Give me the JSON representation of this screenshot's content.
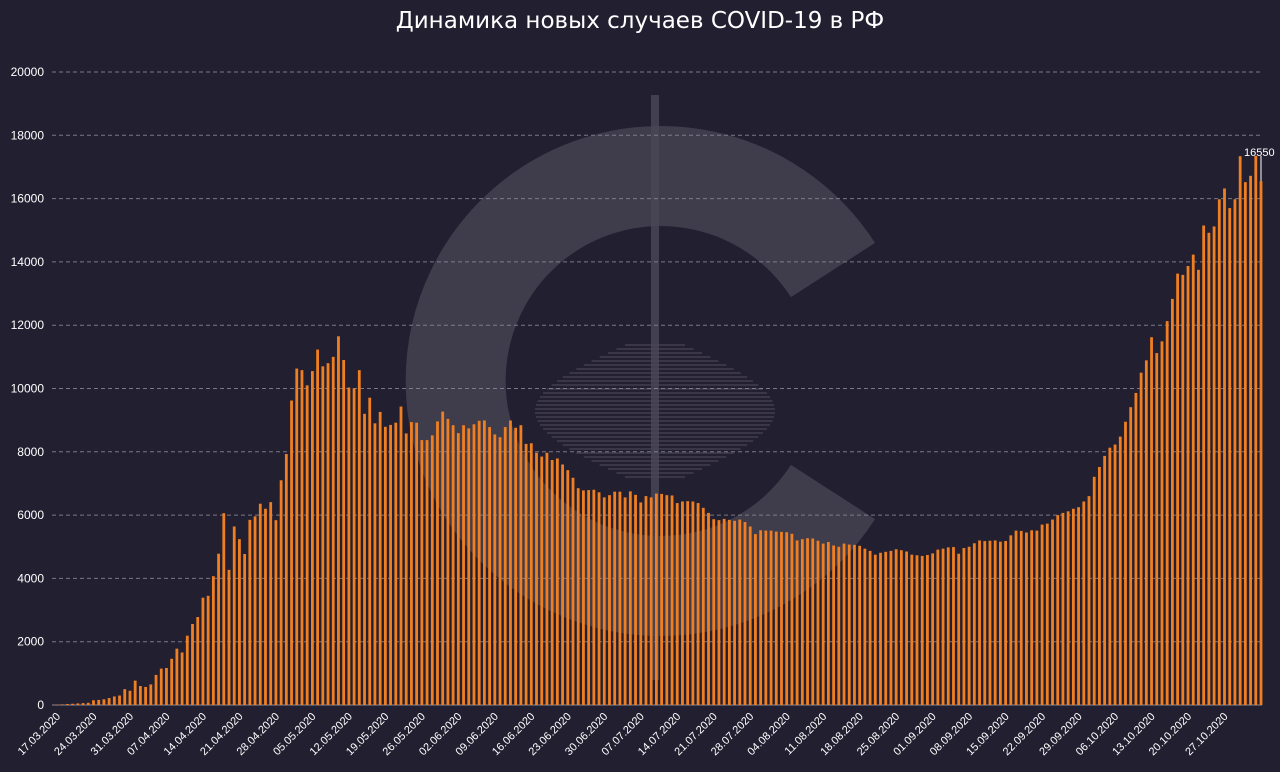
{
  "chart_title": "Динамика новых случаев COVID-19 в РФ",
  "colors": {
    "background": "#221f30",
    "bar": "#f07f22",
    "grid": "#8a8795",
    "watermark": "#4a4756"
  },
  "watermark_icon": "c-logo-watermark-icon",
  "chart_data": {
    "type": "bar",
    "title": "Динамика новых случаев COVID-19 в РФ",
    "xlabel": "",
    "ylabel": "",
    "ylim": [
      0,
      20000
    ],
    "y_ticks": [
      0,
      2000,
      4000,
      6000,
      8000,
      10000,
      12000,
      14000,
      16000,
      18000,
      20000
    ],
    "x_tick_labels": [
      "17.03.2020",
      "24.03.2020",
      "31.03.2020",
      "07.04.2020",
      "14.04.2020",
      "21.04.2020",
      "28.04.2020",
      "05.05.2020",
      "12.05.2020",
      "19.05.2020",
      "26.05.2020",
      "02.06.2020",
      "09.06.2020",
      "16.06.2020",
      "23.06.2020",
      "30.06.2020",
      "07.07.2020",
      "14.07.2020",
      "21.07.2020",
      "28.07.2020",
      "04.08.2020",
      "11.08.2020",
      "18.08.2020",
      "25.08.2020",
      "01.09.2020",
      "08.09.2020",
      "15.09.2020",
      "22.09.2020",
      "29.09.2020",
      "06.10.2020",
      "13.10.2020",
      "20.10.2020",
      "27.10.2020"
    ],
    "grid": "horizontal dashed",
    "start_date": "17.03.2020",
    "values": [
      10,
      20,
      30,
      40,
      50,
      60,
      70,
      150,
      160,
      180,
      220,
      270,
      300,
      500,
      450,
      770,
      600,
      570,
      650,
      950,
      1150,
      1170,
      1460,
      1780,
      1660,
      2190,
      2560,
      2780,
      3390,
      3450,
      4070,
      4780,
      6060,
      4270,
      5640,
      5240,
      4770,
      5850,
      5960,
      6360,
      6200,
      6410,
      5840,
      7100,
      7930,
      9620,
      10630,
      10580,
      10100,
      10550,
      11230,
      10700,
      10800,
      11000,
      11650,
      10900,
      10030,
      10000,
      10580,
      9200,
      9710,
      8900,
      9260,
      8790,
      8850,
      8920,
      9430,
      8580,
      8940,
      8920,
      8370,
      8370,
      8520,
      8960,
      9270,
      9040,
      8840,
      8590,
      8840,
      8740,
      8870,
      8980,
      8990,
      8780,
      8550,
      8460,
      8780,
      8990,
      8760,
      8840,
      8250,
      8270,
      7970,
      7850,
      7970,
      7740,
      7790,
      7600,
      7420,
      7180,
      6850,
      6780,
      6790,
      6800,
      6720,
      6560,
      6630,
      6740,
      6740,
      6560,
      6750,
      6640,
      6400,
      6600,
      6560,
      6680,
      6670,
      6630,
      6620,
      6380,
      6430,
      6440,
      6430,
      6380,
      6230,
      6070,
      5870,
      5840,
      5880,
      5850,
      5820,
      5860,
      5780,
      5640,
      5400,
      5520,
      5510,
      5510,
      5480,
      5470,
      5460,
      5410,
      5200,
      5240,
      5270,
      5260,
      5190,
      5100,
      5150,
      5040,
      5000,
      5100,
      5070,
      5060,
      5030,
      4940,
      4870,
      4750,
      4810,
      4840,
      4870,
      4920,
      4890,
      4850,
      4750,
      4730,
      4710,
      4740,
      4790,
      4910,
      4940,
      4980,
      4990,
      4780,
      4960,
      5000,
      5110,
      5200,
      5180,
      5190,
      5200,
      5160,
      5180,
      5360,
      5510,
      5500,
      5450,
      5520,
      5510,
      5700,
      5730,
      5860,
      6000,
      6070,
      6120,
      6200,
      6250,
      6430,
      6600,
      7210,
      7520,
      7870,
      8130,
      8230,
      8480,
      8950,
      9410,
      9860,
      10500,
      10890,
      11620,
      11120,
      11490,
      12130,
      12830,
      13630,
      13590,
      13870,
      14230,
      13750,
      15150,
      14920,
      15120,
      15980,
      16320,
      15700,
      15980,
      17340,
      16520,
      16720,
      17350,
      16550
    ],
    "annotation": "16550"
  }
}
